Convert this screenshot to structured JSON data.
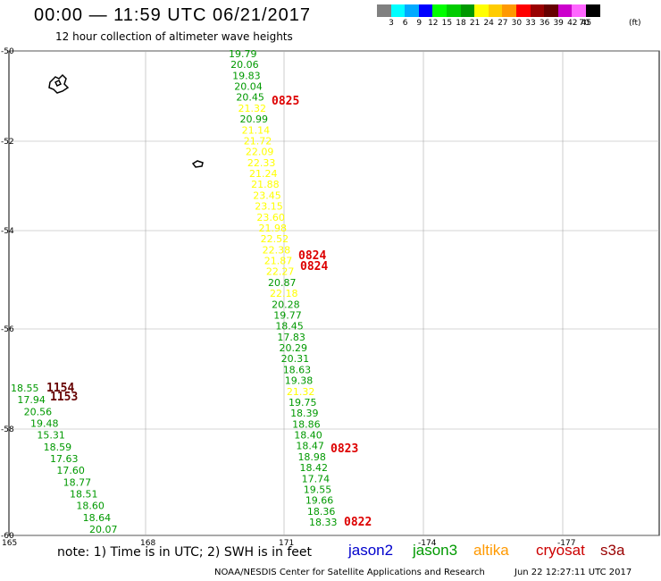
{
  "header": {
    "title": "00:00 — 11:59 UTC 06/21/2017",
    "subtitle": "12 hour collection of altimeter wave heights"
  },
  "colorbar": {
    "colors": [
      "#808080",
      "#00ffff",
      "#00aaff",
      "#0000ff",
      "#00ff00",
      "#00cc00",
      "#009900",
      "#ffff00",
      "#ffcc00",
      "#ff9900",
      "#ff0000",
      "#990000",
      "#660000",
      "#cc00cc",
      "#ff66ff",
      "#000000"
    ],
    "labels": [
      "3",
      "6",
      "9",
      "12",
      "15",
      "18",
      "21",
      "24",
      "27",
      "30",
      "33",
      "36",
      "39",
      "42",
      "45",
      "70"
    ],
    "unit": "(ft)"
  },
  "axes": {
    "lat_ticks": [
      "-50",
      "-52",
      "-54",
      "-56",
      "-58",
      "-60"
    ],
    "lon_ticks": [
      "165",
      "168",
      "171",
      "-174",
      "-177"
    ]
  },
  "track1": {
    "values": [
      "19.79",
      "20.06",
      "19.83",
      "20.04",
      "20.45",
      "21.32",
      "20.99",
      "21.14",
      "21.72",
      "22.09",
      "22.33",
      "21.24",
      "21.88",
      "23.45",
      "23.15",
      "23.60",
      "21.98",
      "22.52",
      "22.38",
      "21.87",
      "22.27",
      "20.87",
      "22.18",
      "20.28",
      "19.77",
      "18.45",
      "17.83",
      "20.29",
      "20.31",
      "18.63",
      "19.38",
      "21.32",
      "19.75",
      "18.39",
      "18.86",
      "18.40",
      "18.47",
      "18.98",
      "18.42",
      "17.74",
      "19.55",
      "19.66",
      "18.36",
      "18.33"
    ],
    "colors": [
      "#009900",
      "#009900",
      "#009900",
      "#009900",
      "#009900",
      "#ffff00",
      "#009900",
      "#ffff00",
      "#ffff00",
      "#ffff00",
      "#ffff00",
      "#ffff00",
      "#ffff00",
      "#ffff00",
      "#ffff00",
      "#ffff00",
      "#ffff00",
      "#ffff00",
      "#ffff00",
      "#ffff00",
      "#ffff00",
      "#009900",
      "#ffff00",
      "#009900",
      "#009900",
      "#009900",
      "#009900",
      "#009900",
      "#009900",
      "#009900",
      "#009900",
      "#ffff00",
      "#009900",
      "#009900",
      "#009900",
      "#009900",
      "#009900",
      "#009900",
      "#009900",
      "#009900",
      "#009900",
      "#009900",
      "#009900",
      "#009900"
    ]
  },
  "track1_times": [
    "0825",
    "0824",
    "0824",
    "0823",
    "0822"
  ],
  "track2": {
    "values": [
      "18.55",
      "17.94",
      "20.56",
      "19.48",
      "15.31",
      "18.59",
      "17.63",
      "17.60",
      "18.77",
      "18.51",
      "18.60",
      "18.64",
      "20.07"
    ],
    "colors": [
      "#009900",
      "#009900",
      "#009900",
      "#009900",
      "#009900",
      "#009900",
      "#009900",
      "#009900",
      "#009900",
      "#009900",
      "#009900",
      "#009900",
      "#009900"
    ]
  },
  "track2_times": [
    "1154",
    "1153"
  ],
  "footer": {
    "note": "note: 1) Time is in UTC; 2) SWH is in feet",
    "credit": "NOAA/NESDIS Center for Satellite Applications and Research",
    "timestamp": "Jun 22 12:27:11 UTC 2017"
  },
  "legend": [
    {
      "label": "jason2",
      "color": "#0000cc"
    },
    {
      "label": "jason3",
      "color": "#009900"
    },
    {
      "label": "altika",
      "color": "#ff9900"
    },
    {
      "label": "cryosat",
      "color": "#cc0000"
    },
    {
      "label": "s3a",
      "color": "#990000"
    }
  ]
}
